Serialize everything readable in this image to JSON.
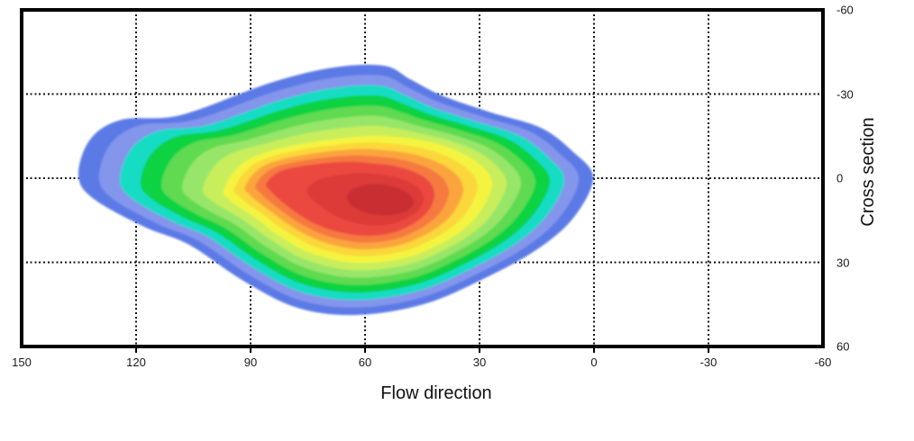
{
  "figure": {
    "background": "#ffffff",
    "frame_color": "#000000",
    "grid_color": "#141414",
    "text_color": "#1a1a1a"
  },
  "chart_data": {
    "type": "filled_contour",
    "title": "",
    "xlabel": "Flow direction",
    "ylabel": "Cross section",
    "x_ticks": [
      150,
      120,
      90,
      60,
      30,
      0,
      -30,
      -60
    ],
    "y_ticks": [
      -60,
      -30,
      0,
      30,
      60
    ],
    "xlim": [
      150,
      -60
    ],
    "ylim_top_to_bottom": [
      -60,
      60
    ],
    "x_axis_reversed": true,
    "y_axis_inverted": true,
    "grid": {
      "style": "dotted",
      "x_lines": [
        120,
        90,
        60,
        30,
        0,
        -30
      ],
      "y_lines": [
        -30,
        0,
        30
      ]
    },
    "legend": "none",
    "colorbar": "none",
    "n_levels": 14,
    "band_colors_outer_to_inner": [
      "#5C7AE6",
      "#8496EC",
      "#12DCC3",
      "#07D243",
      "#5EDA51",
      "#97E669",
      "#C9EE5B",
      "#F4F440",
      "#FCD73A",
      "#FBA43D",
      "#F67941",
      "#EB4A3F",
      "#DC3A37",
      "#C92E33"
    ],
    "peak_estimate": {
      "flow_direction": 56,
      "cross_section": 8
    },
    "support_extent": {
      "flow_direction": [
        135,
        0
      ],
      "cross_section": [
        -40,
        49
      ]
    }
  }
}
